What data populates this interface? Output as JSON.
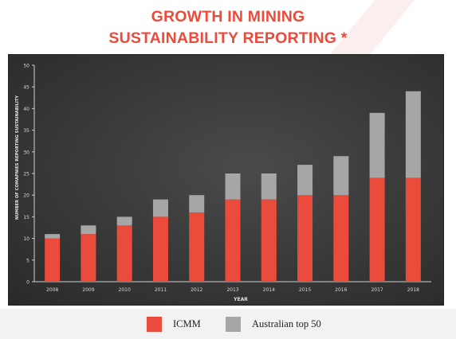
{
  "header": {
    "title_line1": "GROWTH IN MINING",
    "title_line2": "SUSTAINABILITY REPORTING *"
  },
  "colors": {
    "accent": "#ea4b3b",
    "icmm": "#ea4b3b",
    "australian_top_50": "#a6a6a6",
    "panel": "#3c3c3c"
  },
  "chart_data": {
    "type": "bar",
    "stacked": true,
    "categories": [
      "2008",
      "2009",
      "2010",
      "2011",
      "2012",
      "2013",
      "2014",
      "2015",
      "2016",
      "2017",
      "2018"
    ],
    "series": [
      {
        "name": "ICMM",
        "values": [
          10,
          11,
          13,
          15,
          16,
          19,
          19,
          20,
          20,
          24,
          24
        ]
      },
      {
        "name": "Australian top 50",
        "values": [
          1,
          2,
          2,
          4,
          4,
          6,
          6,
          7,
          9,
          15,
          20
        ]
      }
    ],
    "xlabel": "YEAR",
    "ylabel": "NUMBER OF COMAPNIES REPORTING SUSTAINABILITY",
    "ylim": [
      0,
      50
    ],
    "yticks": [
      0,
      5,
      10,
      15,
      20,
      25,
      30,
      35,
      40,
      45,
      50
    ],
    "grid": false,
    "legend_position": "bottom"
  }
}
